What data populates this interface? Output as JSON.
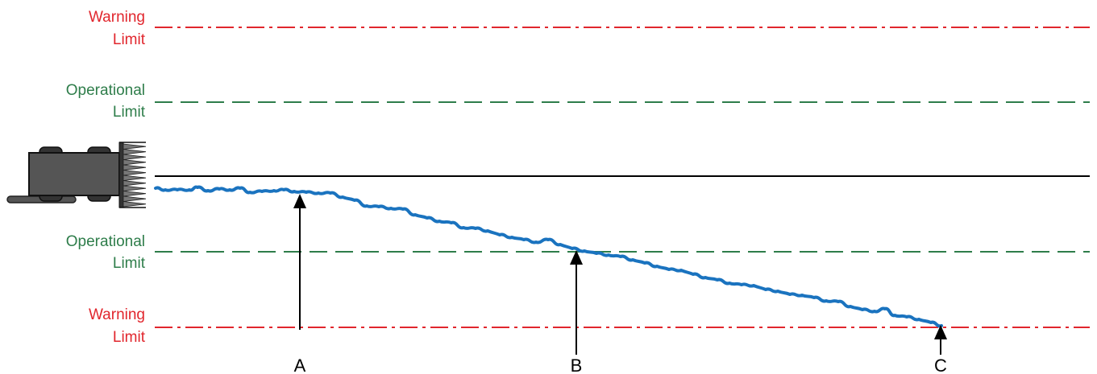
{
  "limits": {
    "upper_warning": {
      "line1": "Warning",
      "line2": "Limit"
    },
    "upper_operational": {
      "line1": "Operational",
      "line2": "Limit"
    },
    "lower_operational": {
      "line1": "Operational",
      "line2": "Limit"
    },
    "lower_warning": {
      "line1": "Warning",
      "line2": "Limit"
    }
  },
  "markers": {
    "a": "A",
    "b": "B",
    "c": "C"
  },
  "colors": {
    "warning": "#e1262d",
    "operational": "#2e7d4a",
    "path": "#1a73bf",
    "reference": "#000000",
    "machine_body": "#555555"
  }
}
